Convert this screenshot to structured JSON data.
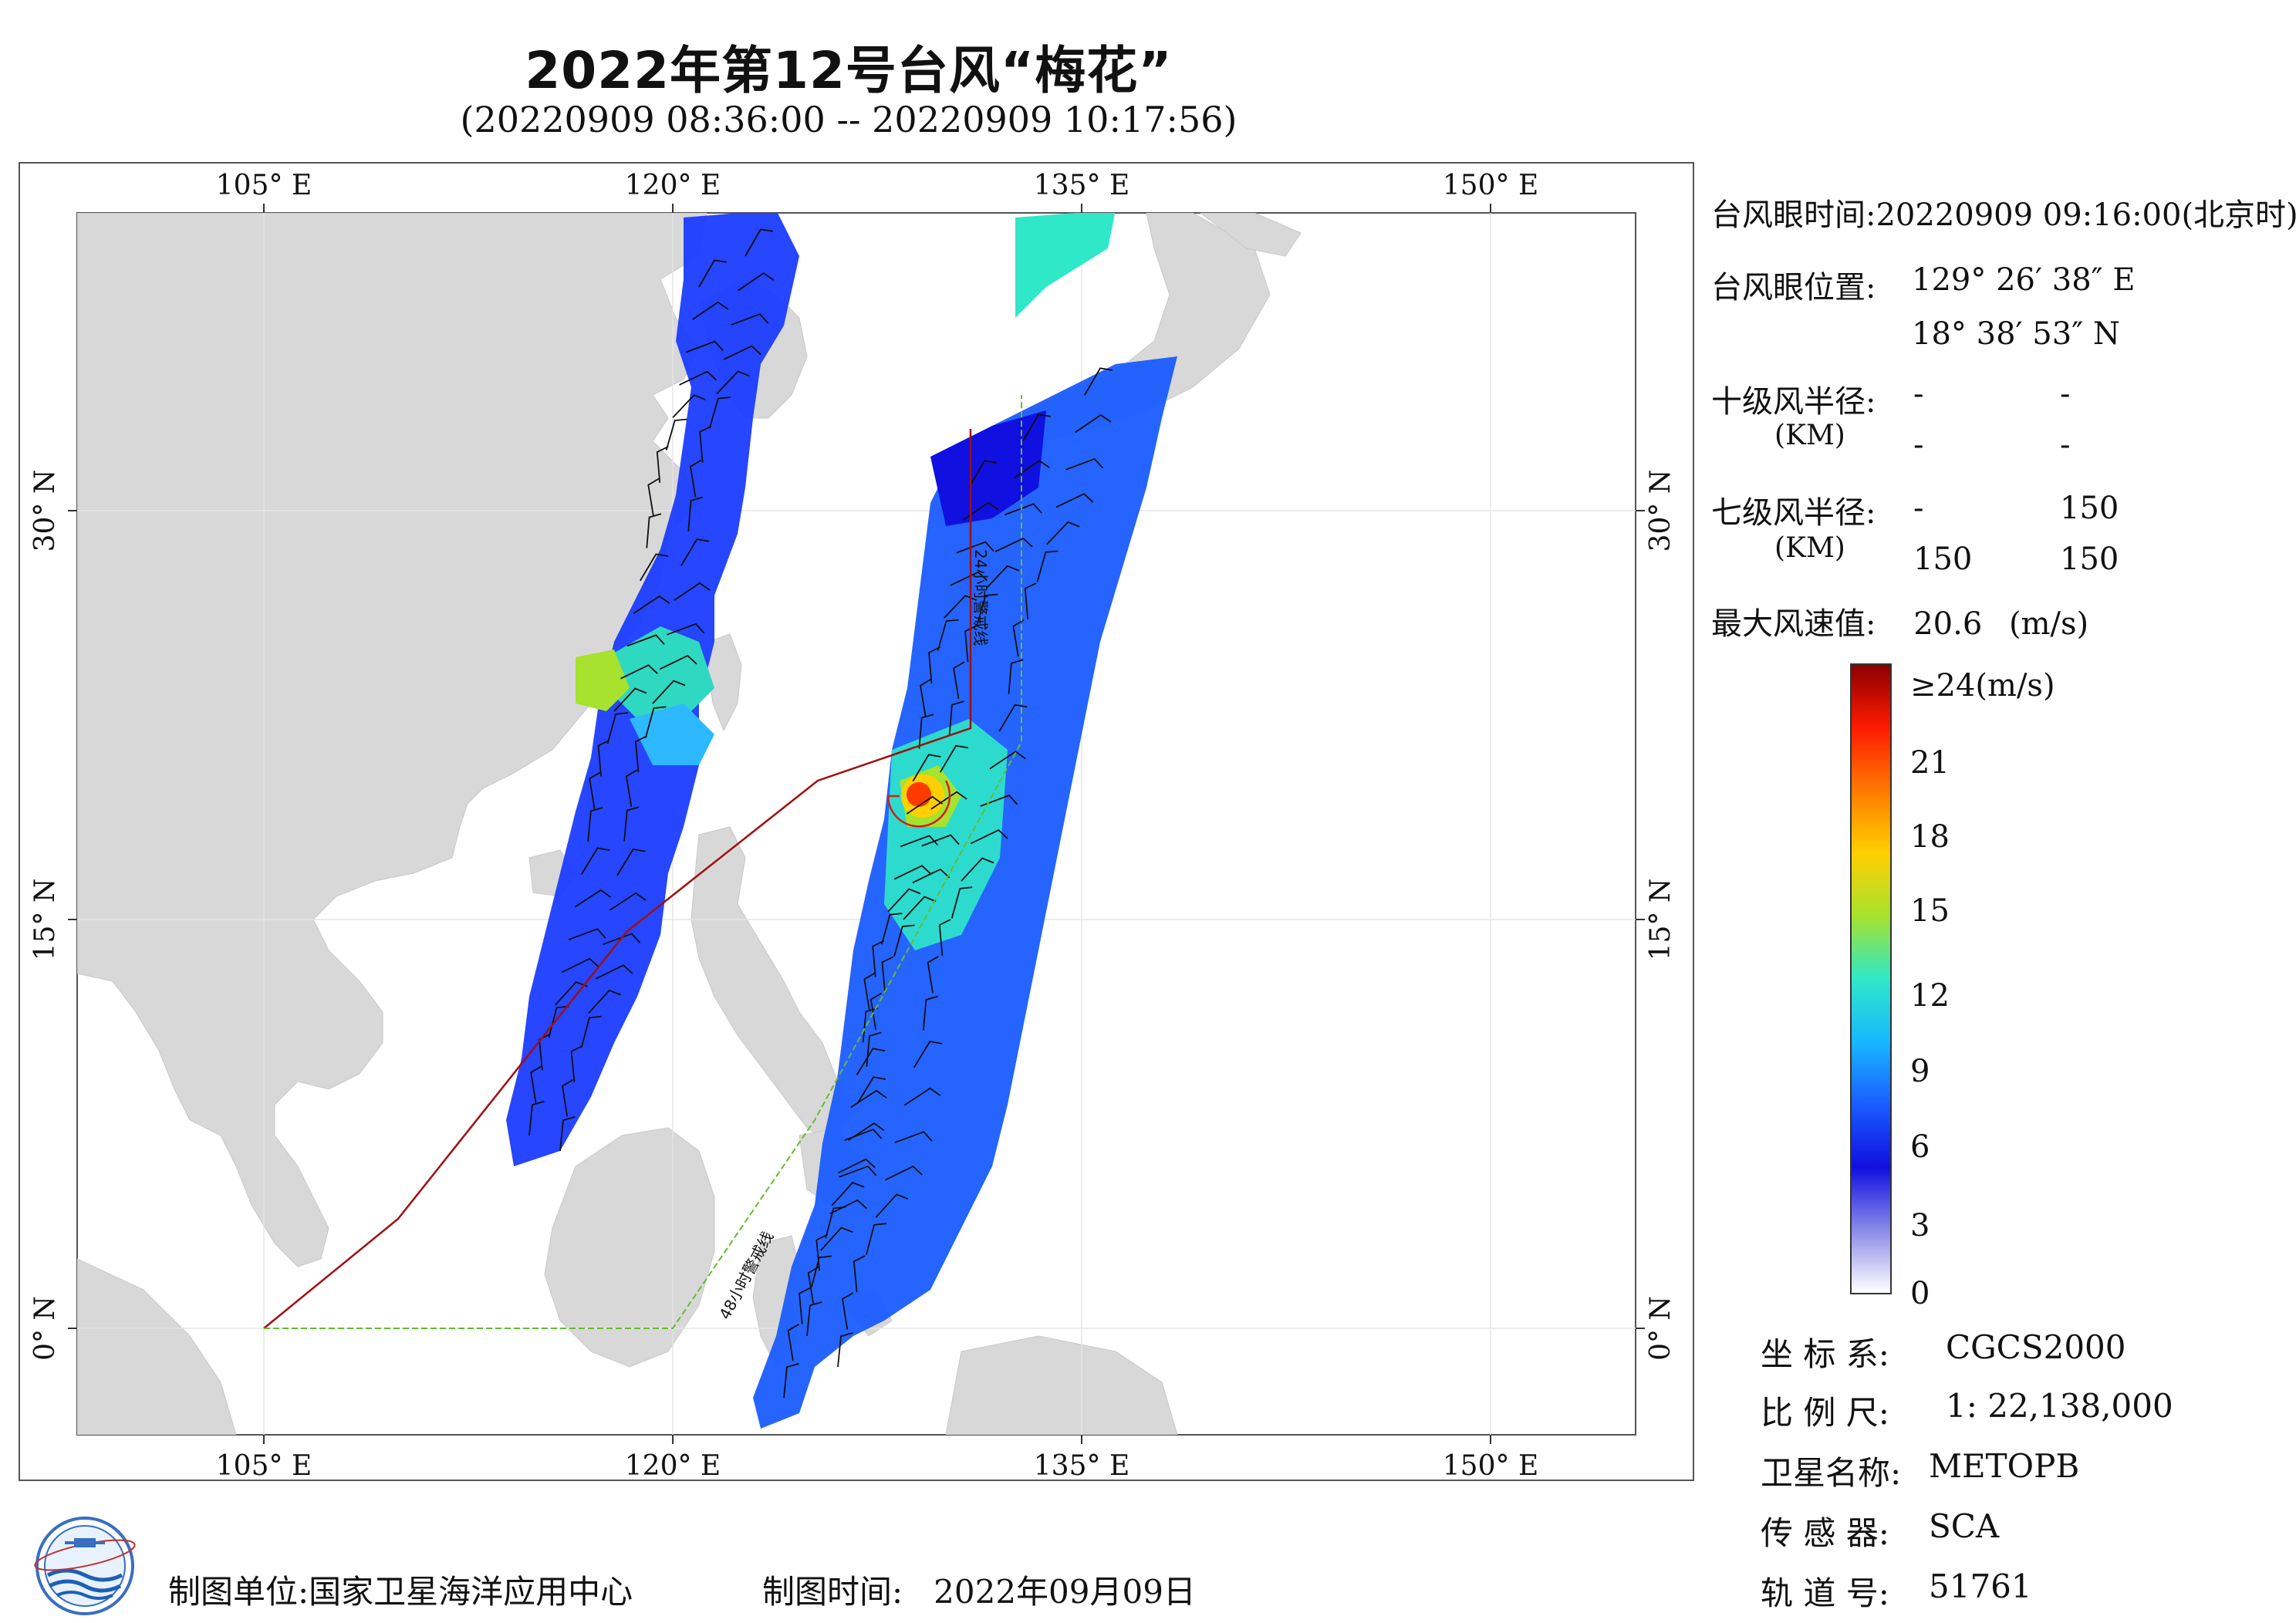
{
  "header": {
    "title": "2022年第12号台风“梅花”",
    "subtitle": "(20220909 08:36:00 -- 20220909 10:17:56)"
  },
  "map": {
    "lon_ticks": [
      "105° E",
      "120° E",
      "135° E",
      "150° E"
    ],
    "lat_ticks": [
      "30° N",
      "15° N",
      "0° N"
    ],
    "warning_24h_label": "24小时警戒线",
    "warning_48h_label": "48小时警戒线",
    "colors": {
      "land": "#d8d8d8",
      "ocean": "#ffffff",
      "warning_24h": "#a01010",
      "warning_48h": "#66bb33"
    },
    "typhoon_eye_lon": 129.44,
    "typhoon_eye_lat": 18.65
  },
  "info_panel": {
    "eye_time_label": "台风眼时间:",
    "eye_time_value": "20220909 09:16:00(北京时)",
    "eye_pos_label": "台风眼位置:",
    "eye_lon": "129° 26′ 38″ E",
    "eye_lat": "18° 38′ 53″ N",
    "r10_label": "十级风半径:",
    "r10_unit": "(KM)",
    "r10_values": [
      "-",
      "-",
      "-",
      "-"
    ],
    "r7_label": "七级风半径:",
    "r7_unit": "(KM)",
    "r7_values": [
      "-",
      "150",
      "150",
      "150"
    ],
    "max_wind_label": "最大风速值:",
    "max_wind_value": "20.6",
    "max_wind_unit": "(m/s)"
  },
  "colorbar": {
    "labels": [
      "≥24(m/s)",
      "21",
      "18",
      "15",
      "12",
      "9",
      "6",
      "3",
      "0"
    ],
    "stops": [
      "#8b0000",
      "#ff1a00",
      "#ff7a00",
      "#ffd000",
      "#a6e22e",
      "#2ee8c8",
      "#18b8ff",
      "#1a5cff",
      "#1010e0",
      "#8a8ae8",
      "#ffffff"
    ]
  },
  "meta_panel": {
    "crs_label": "坐 标 系:",
    "crs_value": "CGCS2000",
    "scale_label": "比 例 尺:",
    "scale_value": "1: 22,138,000",
    "satellite_label": "卫星名称:",
    "satellite_value": "METOPB",
    "sensor_label": "传 感 器:",
    "sensor_value": "SCA",
    "orbit_label": "轨 道 号:",
    "orbit_value": "51761"
  },
  "footer": {
    "producer_label": "制图单位:",
    "producer_value": "国家卫星海洋应用中心",
    "date_label": "制图时间:",
    "date_value": "2022年09月09日"
  }
}
